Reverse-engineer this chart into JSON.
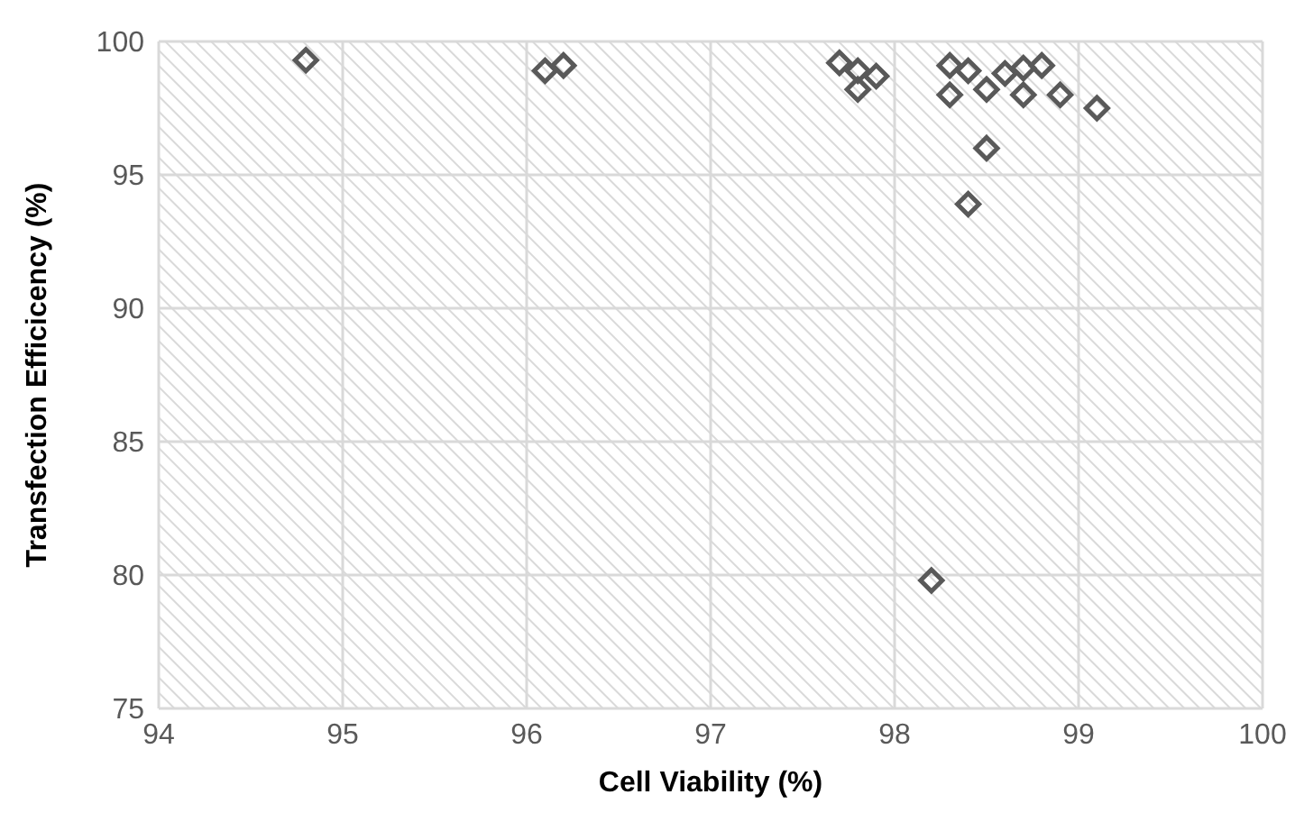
{
  "chart_data": {
    "type": "scatter",
    "xlabel": "Cell Viability (%)",
    "ylabel": "Transfection Efficicency (%)",
    "x": [
      94.8,
      96.1,
      96.2,
      97.7,
      97.8,
      97.8,
      97.9,
      98.3,
      98.3,
      98.4,
      98.5,
      98.6,
      98.7,
      98.7,
      98.8,
      98.9,
      99.1,
      98.5,
      98.4,
      98.2
    ],
    "series": [
      {
        "color": "#595959",
        "values": [
          99.3,
          98.9,
          99.1,
          99.2,
          98.9,
          98.2,
          98.7,
          99.1,
          98.0,
          98.9,
          98.2,
          98.8,
          99.0,
          98.0,
          99.1,
          98.0,
          97.5,
          96.0,
          93.9,
          79.8
        ]
      }
    ],
    "xlim": [
      94,
      100
    ],
    "xticks": [
      94,
      95,
      96,
      97,
      98,
      99,
      100
    ],
    "ylim": [
      75,
      100
    ],
    "yticks": [
      75,
      80,
      85,
      90,
      95,
      100
    ],
    "grid": true,
    "marker": "diamond"
  }
}
